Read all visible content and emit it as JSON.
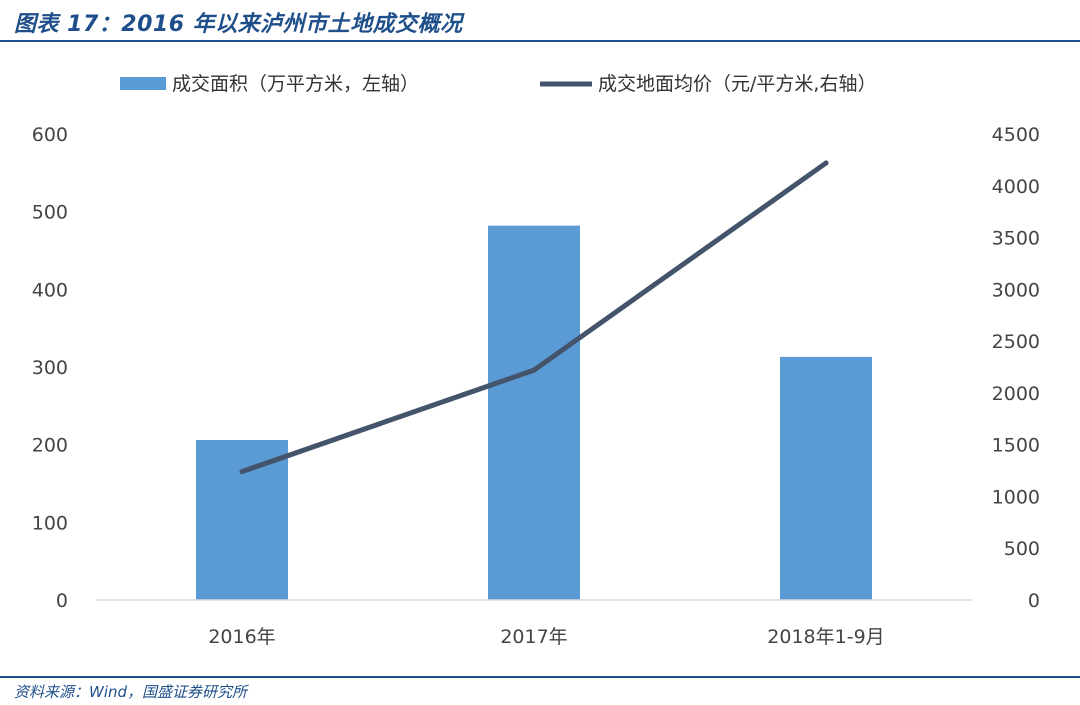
{
  "header": {
    "title": "图表 17：2016 年以来泸州市土地成交概况"
  },
  "footer": {
    "source": "资料来源：Wind，国盛证券研究所"
  },
  "colors": {
    "bar": "#5b9bd5",
    "line": "#44546a",
    "axis": "#d9d9d9",
    "title": "#1f4f8b"
  },
  "chart_data": {
    "type": "bar",
    "categories": [
      "2016年",
      "2017年",
      "2018年1-9月"
    ],
    "series": [
      {
        "name": "成交面积（万平方米，左轴）",
        "type": "bar",
        "axis": "left",
        "values": [
          206,
          482,
          313
        ]
      },
      {
        "name": "成交地面均价（元/平方米,右轴）",
        "type": "line",
        "axis": "right",
        "values": [
          1240,
          2220,
          4220
        ]
      }
    ],
    "y_left": {
      "ticks": [
        0,
        100,
        200,
        300,
        400,
        500,
        600
      ],
      "range": [
        0,
        600
      ]
    },
    "y_right": {
      "ticks": [
        0,
        500,
        1000,
        1500,
        2000,
        2500,
        3000,
        3500,
        4000,
        4500
      ],
      "range": [
        0,
        4500
      ]
    },
    "legend_position": "top",
    "grid": false
  }
}
